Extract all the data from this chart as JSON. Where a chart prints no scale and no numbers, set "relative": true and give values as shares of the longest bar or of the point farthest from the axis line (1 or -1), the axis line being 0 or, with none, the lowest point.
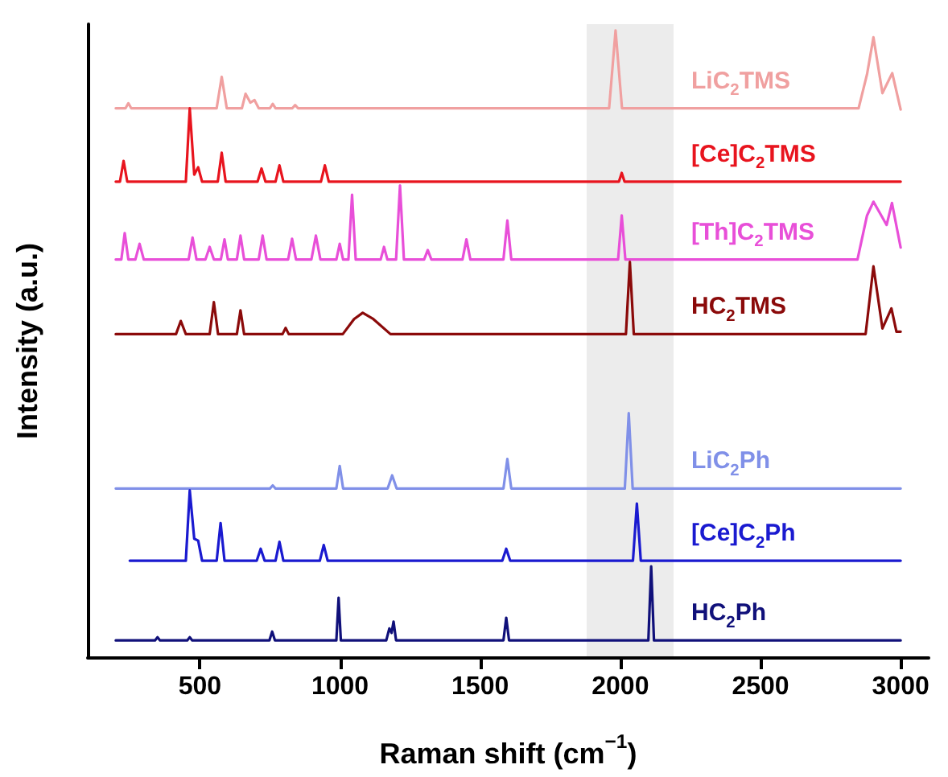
{
  "chart_data": {
    "type": "line",
    "xlabel": "Raman shift (cm$^{−1}$)",
    "ylabel": "Intensity (a.u.)",
    "relative": true,
    "xlim": [
      100,
      3100
    ],
    "xticks": [
      500,
      1000,
      1500,
      2000,
      2500,
      3000
    ],
    "grid": false,
    "legend": false,
    "marker": "none",
    "line_style": "solid",
    "bands": [
      {
        "axis": "x",
        "from": 1880,
        "to": 2190,
        "color": "#ececec"
      }
    ],
    "series": [
      {
        "name": "LiC$_{2}$TMS",
        "color": "#f0a0a0",
        "x": [
          200,
          235,
          245,
          255,
          560,
          578,
          596,
          650,
          663,
          680,
          695,
          710,
          750,
          760,
          770,
          830,
          840,
          850,
          1960,
          1983,
          2006,
          2850,
          2880,
          2903,
          2935,
          2970,
          3000
        ],
        "values": [
          0.876,
          0.876,
          0.884,
          0.876,
          0.876,
          0.926,
          0.876,
          0.876,
          0.899,
          0.885,
          0.889,
          0.876,
          0.876,
          0.883,
          0.876,
          0.876,
          0.881,
          0.876,
          0.876,
          1.0,
          0.876,
          0.876,
          0.93,
          0.989,
          0.9,
          0.932,
          0.874
        ]
      },
      {
        "name": "[Ce]C$_{2}$TMS",
        "color": "#e8141e",
        "x": [
          200,
          215,
          228,
          241,
          450,
          464,
          480,
          494,
          508,
          564,
          578,
          592,
          706,
          720,
          734,
          770,
          784,
          798,
          932,
          946,
          960,
          1995,
          2005,
          2015,
          3000
        ],
        "values": [
          0.759,
          0.759,
          0.792,
          0.759,
          0.759,
          0.876,
          0.77,
          0.782,
          0.759,
          0.759,
          0.805,
          0.759,
          0.759,
          0.78,
          0.759,
          0.759,
          0.785,
          0.759,
          0.759,
          0.785,
          0.759,
          0.759,
          0.773,
          0.759,
          0.759
        ]
      },
      {
        "name": "[Th]C$_{2}$TMS",
        "color": "#e84fd8",
        "x": [
          200,
          220,
          232,
          245,
          270,
          285,
          300,
          460,
          474,
          488,
          520,
          535,
          550,
          575,
          588,
          600,
          632,
          645,
          658,
          710,
          724,
          738,
          815,
          829,
          843,
          898,
          914,
          930,
          987,
          999,
          1011,
          1030,
          1043,
          1056,
          1145,
          1157,
          1169,
          1200,
          1214,
          1228,
          1300,
          1313,
          1326,
          1437,
          1451,
          1465,
          1583,
          1597,
          1611,
          1992,
          2005,
          2018,
          2846,
          2880,
          2903,
          2931,
          2950,
          2969,
          3000
        ],
        "values": [
          0.635,
          0.635,
          0.677,
          0.635,
          0.635,
          0.66,
          0.635,
          0.635,
          0.67,
          0.635,
          0.635,
          0.655,
          0.635,
          0.635,
          0.667,
          0.635,
          0.635,
          0.673,
          0.635,
          0.635,
          0.673,
          0.635,
          0.635,
          0.668,
          0.635,
          0.635,
          0.673,
          0.635,
          0.635,
          0.66,
          0.635,
          0.635,
          0.738,
          0.635,
          0.635,
          0.655,
          0.635,
          0.635,
          0.753,
          0.635,
          0.635,
          0.65,
          0.635,
          0.635,
          0.667,
          0.635,
          0.635,
          0.697,
          0.635,
          0.635,
          0.705,
          0.635,
          0.635,
          0.705,
          0.727,
          0.705,
          0.69,
          0.725,
          0.654
        ]
      },
      {
        "name": "HC$_{2}$TMS",
        "color": "#8b0a0a",
        "x": [
          200,
          415,
          432,
          450,
          535,
          550,
          565,
          632,
          645,
          658,
          795,
          806,
          817,
          1010,
          1050,
          1081,
          1119,
          1180,
          2020,
          2034,
          2048,
          2875,
          2903,
          2935,
          2967,
          2985,
          3000
        ],
        "values": [
          0.516,
          0.516,
          0.537,
          0.516,
          0.516,
          0.567,
          0.516,
          0.516,
          0.554,
          0.516,
          0.516,
          0.526,
          0.516,
          0.516,
          0.54,
          0.55,
          0.54,
          0.516,
          0.516,
          0.631,
          0.516,
          0.516,
          0.624,
          0.525,
          0.557,
          0.52,
          0.52
        ]
      },
      {
        "name": "LiC$_{2}$Ph",
        "color": "#8090e8",
        "x": [
          200,
          750,
          760,
          770,
          987,
          999,
          1011,
          1170,
          1186,
          1202,
          1583,
          1597,
          1611,
          2016,
          2030,
          2044,
          3000
        ],
        "values": [
          0.27,
          0.27,
          0.275,
          0.27,
          0.27,
          0.306,
          0.27,
          0.27,
          0.291,
          0.27,
          0.27,
          0.317,
          0.27,
          0.27,
          0.39,
          0.27,
          0.27
        ]
      },
      {
        "name": "[Ce]C$_{2}$Ph",
        "color": "#1a1ad0",
        "x": [
          250,
          450,
          464,
          480,
          494,
          508,
          560,
          574,
          588,
          703,
          717,
          731,
          770,
          784,
          798,
          928,
          942,
          956,
          1579,
          1593,
          1607,
          2045,
          2059,
          2073,
          3000
        ],
        "values": [
          0.155,
          0.155,
          0.267,
          0.19,
          0.187,
          0.155,
          0.155,
          0.215,
          0.155,
          0.155,
          0.174,
          0.155,
          0.155,
          0.185,
          0.155,
          0.155,
          0.18,
          0.155,
          0.155,
          0.174,
          0.155,
          0.155,
          0.246,
          0.155,
          0.155
        ]
      },
      {
        "name": "HC$_{2}$Ph",
        "color": "#10107a",
        "x": [
          200,
          340,
          349,
          358,
          455,
          464,
          473,
          748,
          758,
          768,
          987,
          995,
          1003,
          1165,
          1176,
          1184,
          1191,
          1200,
          1583,
          1593,
          1603,
          2100,
          2110,
          2120,
          3000
        ],
        "values": [
          0.028,
          0.028,
          0.033,
          0.028,
          0.028,
          0.033,
          0.028,
          0.028,
          0.042,
          0.028,
          0.028,
          0.096,
          0.028,
          0.028,
          0.047,
          0.04,
          0.058,
          0.028,
          0.028,
          0.064,
          0.028,
          0.028,
          0.146,
          0.028,
          0.028
        ]
      }
    ]
  }
}
